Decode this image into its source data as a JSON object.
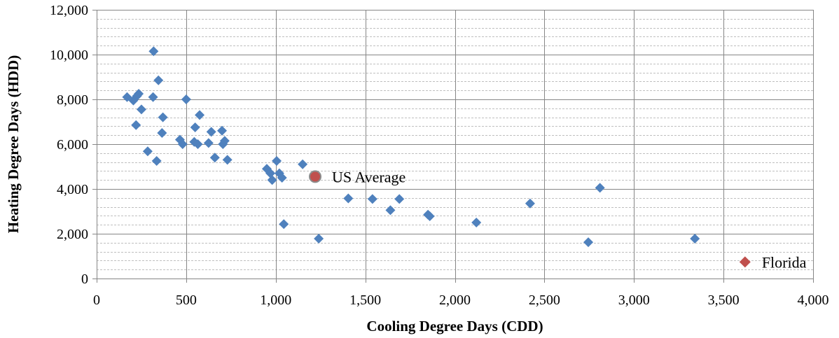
{
  "chart_data": {
    "type": "scatter",
    "title": "",
    "xlabel": "Cooling Degree Days (CDD)",
    "ylabel": "Heating Degree Days (HDD)",
    "xlim": [
      0,
      4000
    ],
    "ylim": [
      0,
      12000
    ],
    "x_major_ticks": [
      0,
      500,
      1000,
      1500,
      2000,
      2500,
      3000,
      3500,
      4000
    ],
    "y_major_ticks": [
      0,
      2000,
      4000,
      6000,
      8000,
      10000,
      12000
    ],
    "x_tick_labels": [
      "0",
      "500",
      "1,000",
      "1,500",
      "2,000",
      "2,500",
      "3,000",
      "3,500",
      "4,000"
    ],
    "y_tick_labels": [
      "0",
      "2,000",
      "4,000",
      "6,000",
      "8,000",
      "10,000",
      "12,000"
    ],
    "y_minor_step": 400,
    "grid": true,
    "legend": "none",
    "colors": {
      "states": "#4f81bd",
      "highlight": "#c0504d",
      "major_grid": "#868686",
      "minor_grid": "#bfbfbf",
      "axis": "#868686"
    },
    "series": [
      {
        "marker": "diamond",
        "color": "#4f81bd",
        "points": [
          [
            170,
            8100
          ],
          [
            205,
            7950
          ],
          [
            225,
            8150
          ],
          [
            235,
            8250
          ],
          [
            250,
            7550
          ],
          [
            220,
            6850
          ],
          [
            285,
            5680
          ],
          [
            318,
            10150
          ],
          [
            315,
            8100
          ],
          [
            345,
            8850
          ],
          [
            335,
            5250
          ],
          [
            370,
            7200
          ],
          [
            365,
            6500
          ],
          [
            465,
            6200
          ],
          [
            480,
            6000
          ],
          [
            500,
            8000
          ],
          [
            545,
            6100
          ],
          [
            550,
            6750
          ],
          [
            565,
            6000
          ],
          [
            575,
            7300
          ],
          [
            625,
            6050
          ],
          [
            640,
            6550
          ],
          [
            660,
            5400
          ],
          [
            700,
            6600
          ],
          [
            705,
            6000
          ],
          [
            715,
            6150
          ],
          [
            730,
            5300
          ],
          [
            950,
            4900
          ],
          [
            970,
            4700
          ],
          [
            980,
            4400
          ],
          [
            1005,
            5250
          ],
          [
            1020,
            4700
          ],
          [
            1035,
            4500
          ],
          [
            1045,
            2430
          ],
          [
            1150,
            5100
          ],
          [
            1240,
            1780
          ],
          [
            1405,
            3580
          ],
          [
            1540,
            3550
          ],
          [
            1640,
            3050
          ],
          [
            1690,
            3550
          ],
          [
            1850,
            2850
          ],
          [
            1860,
            2780
          ],
          [
            2120,
            2500
          ],
          [
            2420,
            3350
          ],
          [
            2745,
            1620
          ],
          [
            2810,
            4050
          ],
          [
            3340,
            1780
          ]
        ]
      },
      {
        "name": "US Average",
        "marker": "circle",
        "color": "#c0504d",
        "points": [
          [
            1220,
            4550
          ]
        ]
      },
      {
        "name": "Florida",
        "marker": "diamond",
        "color": "#c0504d",
        "points": [
          [
            3620,
            740
          ]
        ]
      }
    ],
    "annotations": [
      {
        "text": "US Average",
        "series": "US Average"
      },
      {
        "text": "Florida",
        "series": "Florida"
      }
    ]
  }
}
